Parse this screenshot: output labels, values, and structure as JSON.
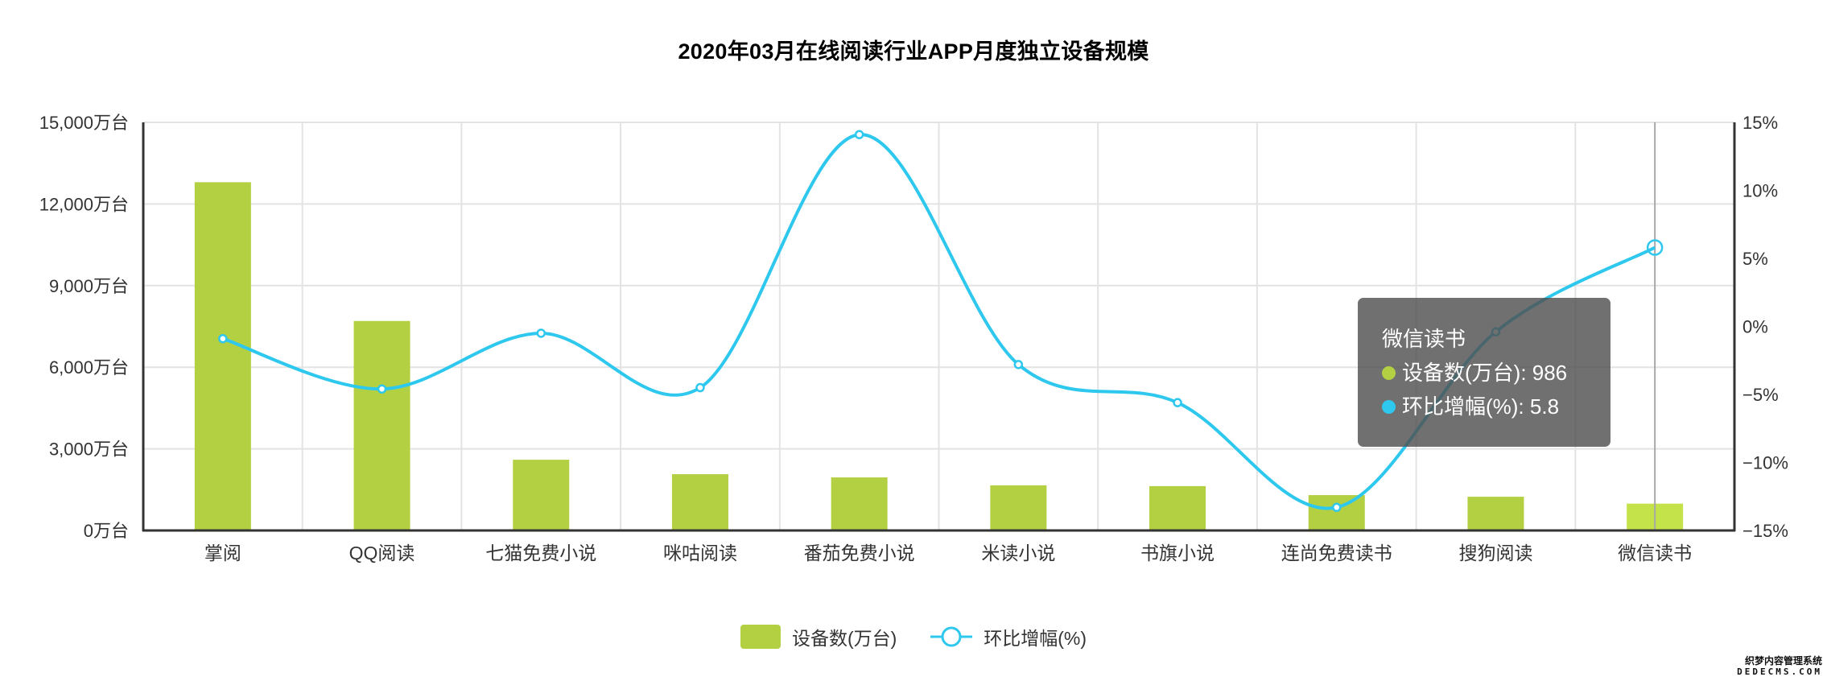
{
  "title": "2020年03月在线阅读行业APP月度独立设备规模",
  "colors": {
    "bar": "#b3d042",
    "bar_highlight": "#c4e34a",
    "line": "#2ec8ef",
    "grid": "#e3e3e3",
    "axis": "#333333",
    "tooltip_bg": "#505050"
  },
  "legend": {
    "bar_label": "设备数(万台)",
    "line_label": "环比增幅(%)"
  },
  "tooltip": {
    "title": "微信读书",
    "bar_row": "设备数(万台): 986",
    "line_row": "环比增幅(%): 5.8"
  },
  "watermark": {
    "cn": "织梦内容管理系统",
    "en": "DEDECMS.COM"
  },
  "chart_data": {
    "type": "bar+line",
    "title": "2020年03月在线阅读行业APP月度独立设备规模",
    "categories": [
      "掌阅",
      "QQ阅读",
      "七猫免费小说",
      "咪咕阅读",
      "番茄免费小说",
      "米读小说",
      "书旗小说",
      "连尚免费读书",
      "搜狗阅读",
      "微信读书"
    ],
    "series": [
      {
        "name": "设备数(万台)",
        "type": "bar",
        "axis": "left",
        "values": [
          12800,
          7700,
          2600,
          2070,
          1950,
          1660,
          1630,
          1300,
          1240,
          986
        ]
      },
      {
        "name": "环比增幅(%)",
        "type": "line",
        "smooth": true,
        "axis": "right",
        "values": [
          -0.9,
          -4.6,
          -0.5,
          -4.5,
          14.1,
          -2.8,
          -5.6,
          -13.3,
          -0.4,
          5.8
        ]
      }
    ],
    "y_left": {
      "label": "",
      "ylim": [
        0,
        15000
      ],
      "ticks": [
        0,
        3000,
        6000,
        9000,
        12000,
        15000
      ],
      "tick_labels": [
        "0万台",
        "3,000万台",
        "6,000万台",
        "9,000万台",
        "12,000万台",
        "15,000万台"
      ]
    },
    "y_right": {
      "label": "",
      "ylim": [
        -15,
        15
      ],
      "ticks": [
        -15,
        -10,
        -5,
        0,
        5,
        10,
        15
      ],
      "tick_labels": [
        "−15%",
        "−10%",
        "−5%",
        "0%",
        "5%",
        "10%",
        "15%"
      ]
    },
    "grid": true,
    "legend_position": "bottom-center",
    "highlighted_category": "微信读书"
  }
}
